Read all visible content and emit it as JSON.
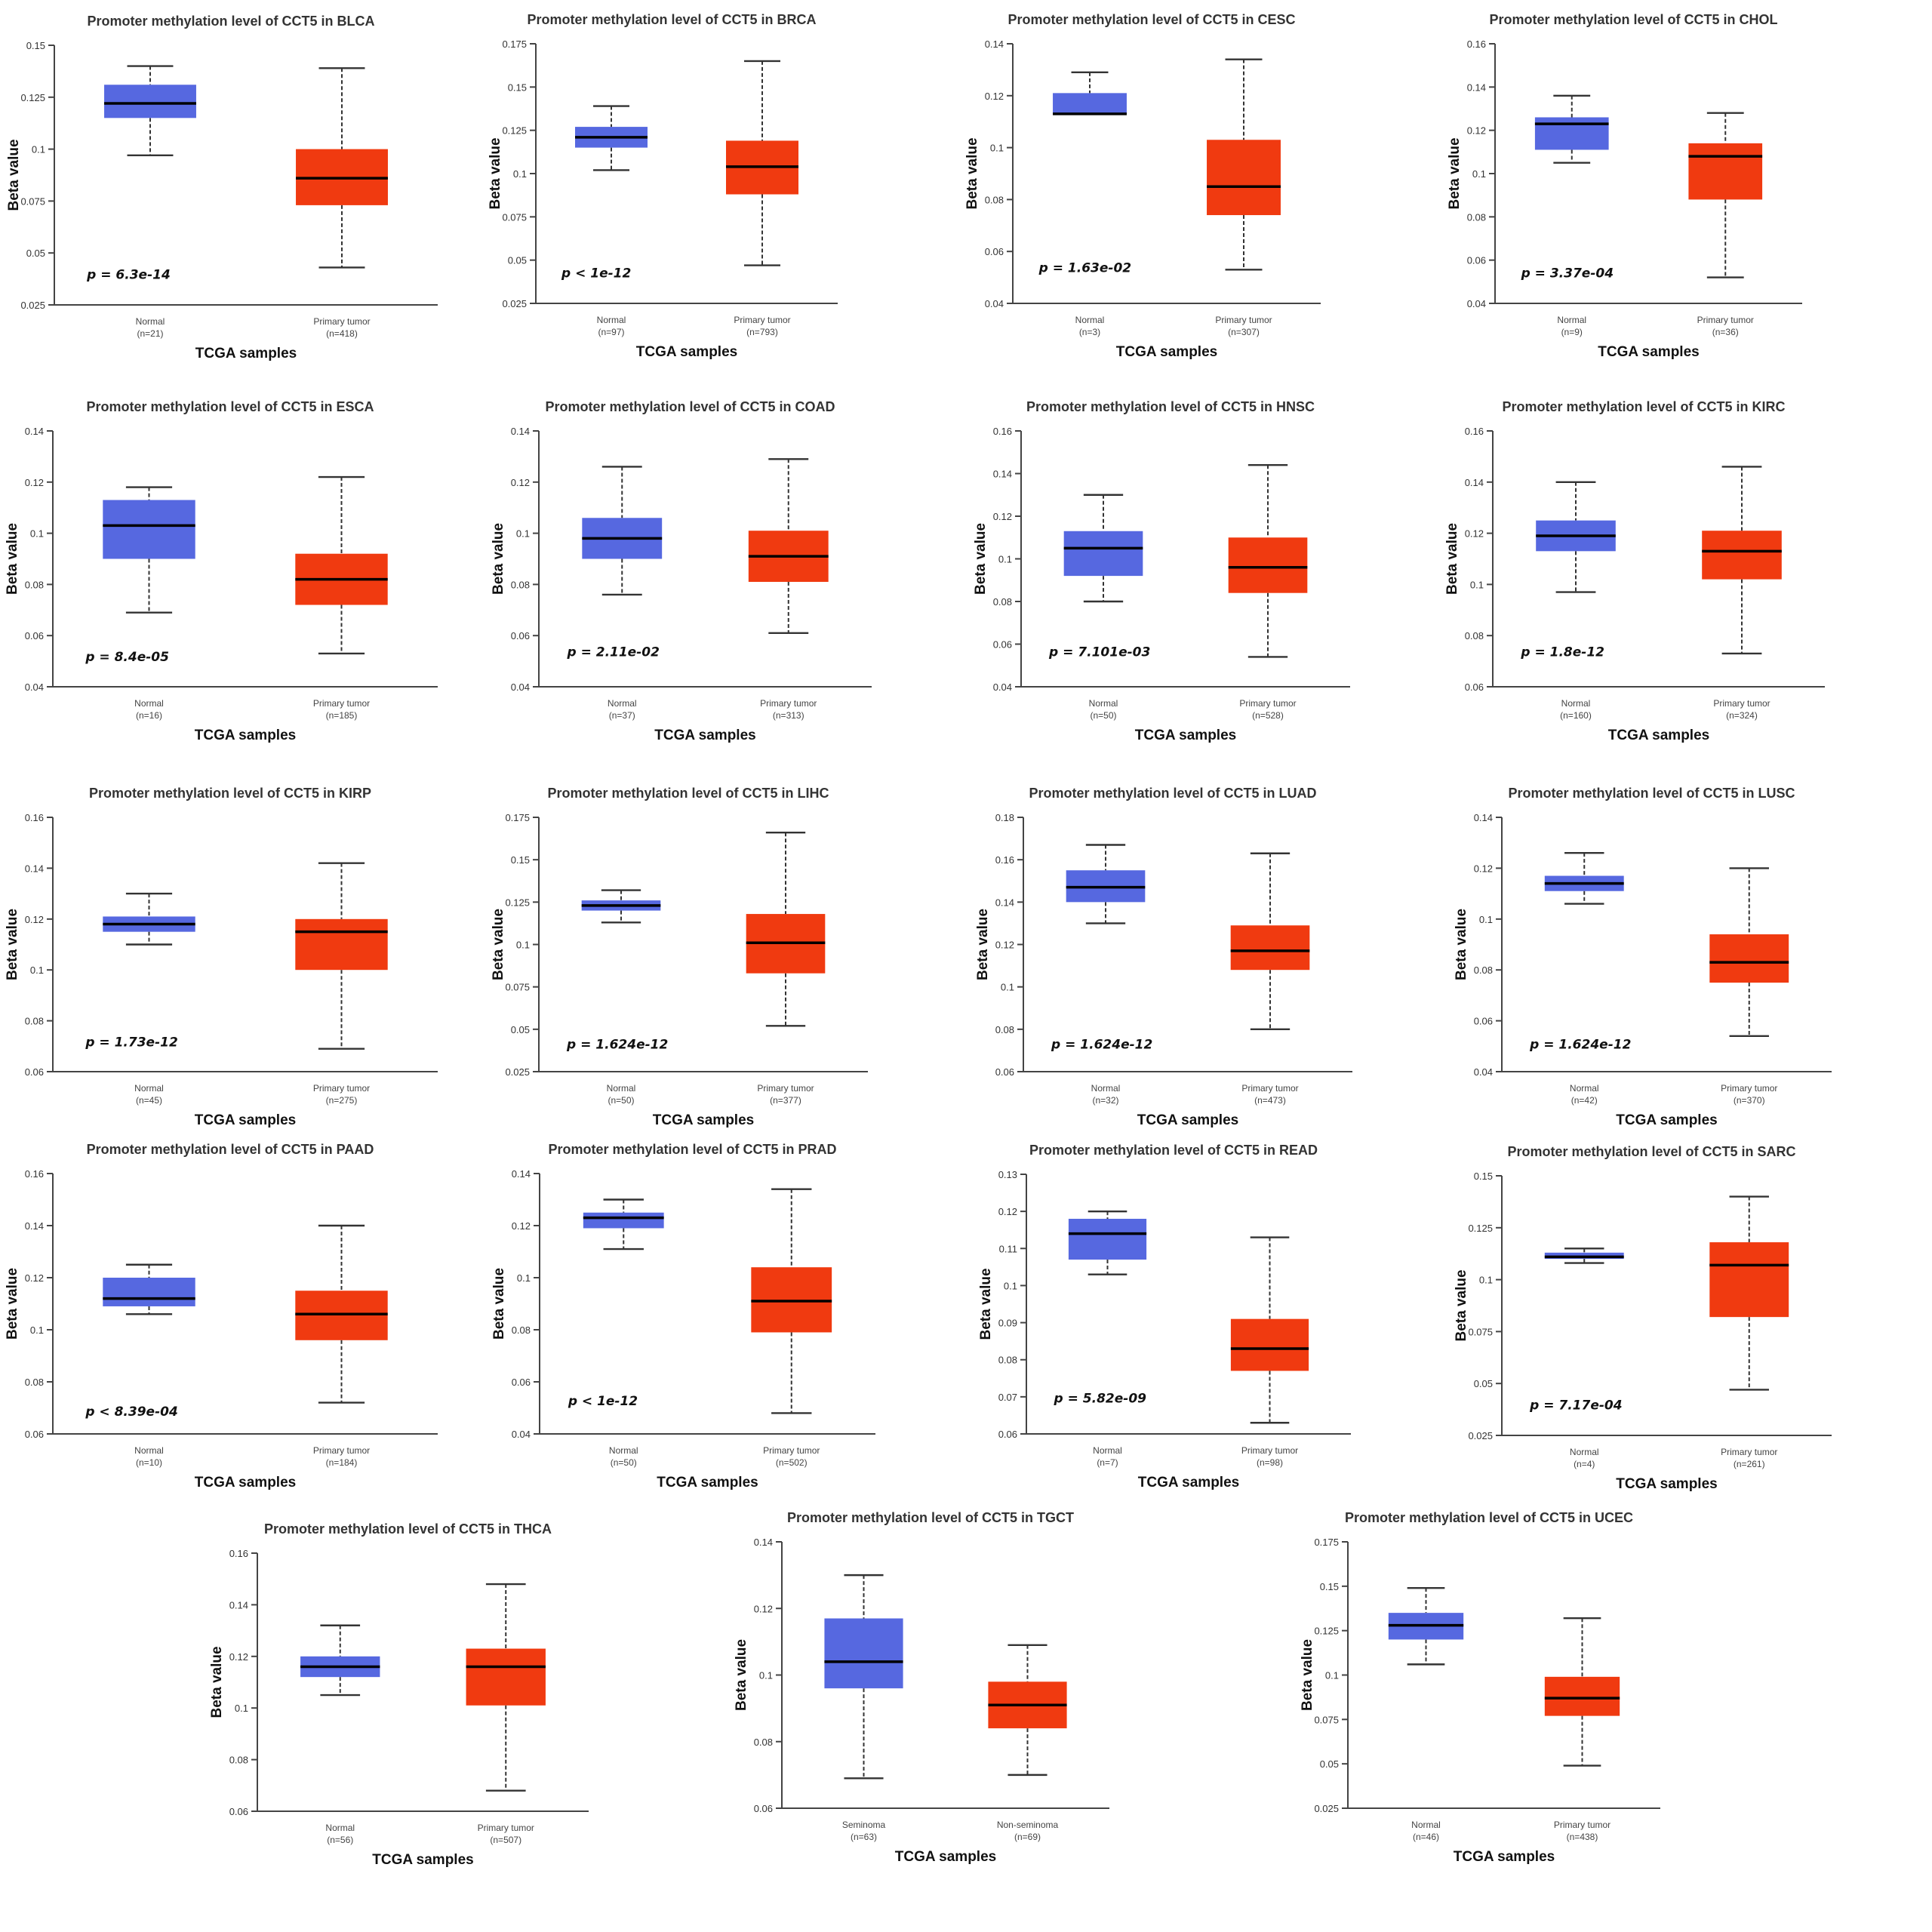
{
  "figure": {
    "gene": "CCT5",
    "colors": {
      "normal": "#5668e0",
      "tumor": "#f03a10",
      "axis": "#444444",
      "text": "#333333"
    }
  },
  "chart_data": [
    {
      "type": "box",
      "title": "Promoter methylation level of CCT5 in BLCA",
      "xlabel": "TCGA samples",
      "ylabel": "Beta value",
      "ylim": [
        0.025,
        0.15
      ],
      "yticks": [
        "0.025",
        "0.05",
        "0.075",
        "0.1",
        "0.125",
        "0.15"
      ],
      "p_value": "p = 6.3e-14",
      "groups": [
        {
          "label": "Normal",
          "n": "(n=21)",
          "min": 0.097,
          "q1": 0.115,
          "median": 0.122,
          "q3": 0.131,
          "max": 0.14
        },
        {
          "label": "Primary tumor",
          "n": "(n=418)",
          "min": 0.043,
          "q1": 0.073,
          "median": 0.086,
          "q3": 0.1,
          "max": 0.139
        }
      ]
    },
    {
      "type": "box",
      "title": "Promoter methylation level of CCT5 in BRCA",
      "xlabel": "TCGA samples",
      "ylabel": "Beta value",
      "ylim": [
        0.025,
        0.175
      ],
      "yticks": [
        "0.025",
        "0.05",
        "0.075",
        "0.1",
        "0.125",
        "0.15",
        "0.175"
      ],
      "p_value": "p < 1e-12",
      "groups": [
        {
          "label": "Normal",
          "n": "(n=97)",
          "min": 0.102,
          "q1": 0.115,
          "median": 0.121,
          "q3": 0.127,
          "max": 0.139
        },
        {
          "label": "Primary tumor",
          "n": "(n=793)",
          "min": 0.047,
          "q1": 0.088,
          "median": 0.104,
          "q3": 0.119,
          "max": 0.165
        }
      ]
    },
    {
      "type": "box",
      "title": "Promoter methylation level of CCT5 in CESC",
      "xlabel": "TCGA samples",
      "ylabel": "Beta value",
      "ylim": [
        0.04,
        0.14
      ],
      "yticks": [
        "0.04",
        "0.06",
        "0.08",
        "0.1",
        "0.12",
        "0.14"
      ],
      "p_value": "p = 1.63e-02",
      "groups": [
        {
          "label": "Normal",
          "n": "(n=3)",
          "min": 0.113,
          "q1": 0.113,
          "median": 0.113,
          "q3": 0.121,
          "max": 0.129
        },
        {
          "label": "Primary tumor",
          "n": "(n=307)",
          "min": 0.053,
          "q1": 0.074,
          "median": 0.085,
          "q3": 0.103,
          "max": 0.134
        }
      ]
    },
    {
      "type": "box",
      "title": "Promoter methylation level of CCT5 in CHOL",
      "xlabel": "TCGA samples",
      "ylabel": "Beta value",
      "ylim": [
        0.04,
        0.16
      ],
      "yticks": [
        "0.04",
        "0.06",
        "0.08",
        "0.1",
        "0.12",
        "0.14",
        "0.16"
      ],
      "p_value": "p = 3.37e-04",
      "groups": [
        {
          "label": "Normal",
          "n": "(n=9)",
          "min": 0.105,
          "q1": 0.111,
          "median": 0.123,
          "q3": 0.126,
          "max": 0.136
        },
        {
          "label": "Primary tumor",
          "n": "(n=36)",
          "min": 0.052,
          "q1": 0.088,
          "median": 0.108,
          "q3": 0.114,
          "max": 0.128
        }
      ]
    },
    {
      "type": "box",
      "title": "Promoter methylation level of CCT5 in ESCA",
      "xlabel": "TCGA samples",
      "ylabel": "Beta value",
      "ylim": [
        0.04,
        0.14
      ],
      "yticks": [
        "0.04",
        "0.06",
        "0.08",
        "0.1",
        "0.12",
        "0.14"
      ],
      "p_value": "p = 8.4e-05",
      "groups": [
        {
          "label": "Normal",
          "n": "(n=16)",
          "min": 0.069,
          "q1": 0.09,
          "median": 0.103,
          "q3": 0.113,
          "max": 0.118
        },
        {
          "label": "Primary tumor",
          "n": "(n=185)",
          "min": 0.053,
          "q1": 0.072,
          "median": 0.082,
          "q3": 0.092,
          "max": 0.122
        }
      ]
    },
    {
      "type": "box",
      "title": "Promoter methylation level of CCT5 in COAD",
      "xlabel": "TCGA samples",
      "ylabel": "Beta value",
      "ylim": [
        0.04,
        0.14
      ],
      "yticks": [
        "0.04",
        "0.06",
        "0.08",
        "0.1",
        "0.12",
        "0.14"
      ],
      "p_value": "p = 2.11e-02",
      "groups": [
        {
          "label": "Normal",
          "n": "(n=37)",
          "min": 0.076,
          "q1": 0.09,
          "median": 0.098,
          "q3": 0.106,
          "max": 0.126
        },
        {
          "label": "Primary tumor",
          "n": "(n=313)",
          "min": 0.061,
          "q1": 0.081,
          "median": 0.091,
          "q3": 0.101,
          "max": 0.129
        }
      ]
    },
    {
      "type": "box",
      "title": "Promoter methylation level of CCT5 in HNSC",
      "xlabel": "TCGA samples",
      "ylabel": "Beta value",
      "ylim": [
        0.04,
        0.16
      ],
      "yticks": [
        "0.04",
        "0.06",
        "0.08",
        "0.1",
        "0.12",
        "0.14",
        "0.16"
      ],
      "p_value": "p = 7.101e-03",
      "groups": [
        {
          "label": "Normal",
          "n": "(n=50)",
          "min": 0.08,
          "q1": 0.092,
          "median": 0.105,
          "q3": 0.113,
          "max": 0.13
        },
        {
          "label": "Primary tumor",
          "n": "(n=528)",
          "min": 0.054,
          "q1": 0.084,
          "median": 0.096,
          "q3": 0.11,
          "max": 0.144
        }
      ]
    },
    {
      "type": "box",
      "title": "Promoter methylation level of CCT5 in KIRC",
      "xlabel": "TCGA samples",
      "ylabel": "Beta value",
      "ylim": [
        0.06,
        0.16
      ],
      "yticks": [
        "0.06",
        "0.08",
        "0.1",
        "0.12",
        "0.14",
        "0.16"
      ],
      "p_value": "p = 1.8e-12",
      "groups": [
        {
          "label": "Normal",
          "n": "(n=160)",
          "min": 0.097,
          "q1": 0.113,
          "median": 0.119,
          "q3": 0.125,
          "max": 0.14
        },
        {
          "label": "Primary tumor",
          "n": "(n=324)",
          "min": 0.073,
          "q1": 0.102,
          "median": 0.113,
          "q3": 0.121,
          "max": 0.146
        }
      ]
    },
    {
      "type": "box",
      "title": "Promoter methylation level of CCT5 in KIRP",
      "xlabel": "TCGA samples",
      "ylabel": "Beta value",
      "ylim": [
        0.06,
        0.16
      ],
      "yticks": [
        "0.06",
        "0.08",
        "0.1",
        "0.12",
        "0.14",
        "0.16"
      ],
      "p_value": "p = 1.73e-12",
      "groups": [
        {
          "label": "Normal",
          "n": "(n=45)",
          "min": 0.11,
          "q1": 0.115,
          "median": 0.118,
          "q3": 0.121,
          "max": 0.13
        },
        {
          "label": "Primary tumor",
          "n": "(n=275)",
          "min": 0.069,
          "q1": 0.1,
          "median": 0.115,
          "q3": 0.12,
          "max": 0.142
        }
      ]
    },
    {
      "type": "box",
      "title": "Promoter methylation level of CCT5 in LIHC",
      "xlabel": "TCGA samples",
      "ylabel": "Beta value",
      "ylim": [
        0.025,
        0.175
      ],
      "yticks": [
        "0.025",
        "0.05",
        "0.075",
        "0.1",
        "0.125",
        "0.15",
        "0.175"
      ],
      "p_value": "p = 1.624e-12",
      "groups": [
        {
          "label": "Normal",
          "n": "(n=50)",
          "min": 0.113,
          "q1": 0.12,
          "median": 0.123,
          "q3": 0.126,
          "max": 0.132
        },
        {
          "label": "Primary tumor",
          "n": "(n=377)",
          "min": 0.052,
          "q1": 0.083,
          "median": 0.101,
          "q3": 0.118,
          "max": 0.166
        }
      ]
    },
    {
      "type": "box",
      "title": "Promoter methylation level of CCT5 in LUAD",
      "xlabel": "TCGA samples",
      "ylabel": "Beta value",
      "ylim": [
        0.06,
        0.18
      ],
      "yticks": [
        "0.06",
        "0.08",
        "0.1",
        "0.12",
        "0.14",
        "0.16",
        "0.18"
      ],
      "p_value": "p = 1.624e-12",
      "groups": [
        {
          "label": "Normal",
          "n": "(n=32)",
          "min": 0.13,
          "q1": 0.14,
          "median": 0.147,
          "q3": 0.155,
          "max": 0.167
        },
        {
          "label": "Primary tumor",
          "n": "(n=473)",
          "min": 0.08,
          "q1": 0.108,
          "median": 0.117,
          "q3": 0.129,
          "max": 0.163
        }
      ]
    },
    {
      "type": "box",
      "title": "Promoter methylation level of CCT5 in LUSC",
      "xlabel": "TCGA samples",
      "ylabel": "Beta value",
      "ylim": [
        0.04,
        0.14
      ],
      "yticks": [
        "0.04",
        "0.06",
        "0.08",
        "0.1",
        "0.12",
        "0.14"
      ],
      "p_value": "p = 1.624e-12",
      "groups": [
        {
          "label": "Normal",
          "n": "(n=42)",
          "min": 0.106,
          "q1": 0.111,
          "median": 0.114,
          "q3": 0.117,
          "max": 0.126
        },
        {
          "label": "Primary tumor",
          "n": "(n=370)",
          "min": 0.054,
          "q1": 0.075,
          "median": 0.083,
          "q3": 0.094,
          "max": 0.12
        }
      ]
    },
    {
      "type": "box",
      "title": "Promoter methylation level of CCT5 in PAAD",
      "xlabel": "TCGA samples",
      "ylabel": "Beta value",
      "ylim": [
        0.06,
        0.16
      ],
      "yticks": [
        "0.06",
        "0.08",
        "0.1",
        "0.12",
        "0.14",
        "0.16"
      ],
      "p_value": "p < 8.39e-04",
      "groups": [
        {
          "label": "Normal",
          "n": "(n=10)",
          "min": 0.106,
          "q1": 0.109,
          "median": 0.112,
          "q3": 0.12,
          "max": 0.125
        },
        {
          "label": "Primary tumor",
          "n": "(n=184)",
          "min": 0.072,
          "q1": 0.096,
          "median": 0.106,
          "q3": 0.115,
          "max": 0.14
        }
      ]
    },
    {
      "type": "box",
      "title": "Promoter methylation level of CCT5 in PRAD",
      "xlabel": "TCGA samples",
      "ylabel": "Beta value",
      "ylim": [
        0.04,
        0.14
      ],
      "yticks": [
        "0.04",
        "0.06",
        "0.08",
        "0.1",
        "0.12",
        "0.14"
      ],
      "p_value": "p < 1e-12",
      "groups": [
        {
          "label": "Normal",
          "n": "(n=50)",
          "min": 0.111,
          "q1": 0.119,
          "median": 0.123,
          "q3": 0.125,
          "max": 0.13
        },
        {
          "label": "Primary tumor",
          "n": "(n=502)",
          "min": 0.048,
          "q1": 0.079,
          "median": 0.091,
          "q3": 0.104,
          "max": 0.134
        }
      ]
    },
    {
      "type": "box",
      "title": "Promoter methylation level of CCT5 in READ",
      "xlabel": "TCGA samples",
      "ylabel": "Beta value",
      "ylim": [
        0.06,
        0.13
      ],
      "yticks": [
        "0.06",
        "0.07",
        "0.08",
        "0.09",
        "0.1",
        "0.11",
        "0.12",
        "0.13"
      ],
      "p_value": "p = 5.82e-09",
      "groups": [
        {
          "label": "Normal",
          "n": "(n=7)",
          "min": 0.103,
          "q1": 0.107,
          "median": 0.114,
          "q3": 0.118,
          "max": 0.12
        },
        {
          "label": "Primary tumor",
          "n": "(n=98)",
          "min": 0.063,
          "q1": 0.077,
          "median": 0.083,
          "q3": 0.091,
          "max": 0.113
        }
      ]
    },
    {
      "type": "box",
      "title": "Promoter methylation level of CCT5 in SARC",
      "xlabel": "TCGA samples",
      "ylabel": "Beta value",
      "ylim": [
        0.025,
        0.15
      ],
      "yticks": [
        "0.025",
        "0.05",
        "0.075",
        "0.1",
        "0.125",
        "0.15"
      ],
      "p_value": "p = 7.17e-04",
      "groups": [
        {
          "label": "Normal",
          "n": "(n=4)",
          "min": 0.108,
          "q1": 0.11,
          "median": 0.111,
          "q3": 0.113,
          "max": 0.115
        },
        {
          "label": "Primary tumor",
          "n": "(n=261)",
          "min": 0.047,
          "q1": 0.082,
          "median": 0.107,
          "q3": 0.118,
          "max": 0.14
        }
      ]
    },
    {
      "type": "box",
      "title": "Promoter methylation level of CCT5 in THCA",
      "xlabel": "TCGA samples",
      "ylabel": "Beta value",
      "ylim": [
        0.06,
        0.16
      ],
      "yticks": [
        "0.06",
        "0.08",
        "0.1",
        "0.12",
        "0.14",
        "0.16"
      ],
      "p_value": "",
      "groups": [
        {
          "label": "Normal",
          "n": "(n=56)",
          "min": 0.105,
          "q1": 0.112,
          "median": 0.116,
          "q3": 0.12,
          "max": 0.132
        },
        {
          "label": "Primary tumor",
          "n": "(n=507)",
          "min": 0.068,
          "q1": 0.101,
          "median": 0.116,
          "q3": 0.123,
          "max": 0.148
        }
      ]
    },
    {
      "type": "box",
      "title": "Promoter methylation level of CCT5 in TGCT",
      "xlabel": "TCGA samples",
      "ylabel": "Beta value",
      "ylim": [
        0.06,
        0.14
      ],
      "yticks": [
        "0.06",
        "0.08",
        "0.1",
        "0.12",
        "0.14"
      ],
      "p_value": "",
      "groups": [
        {
          "label": "Seminoma",
          "n": "(n=63)",
          "min": 0.069,
          "q1": 0.096,
          "median": 0.104,
          "q3": 0.117,
          "max": 0.13
        },
        {
          "label": "Non-seminoma",
          "n": "(n=69)",
          "min": 0.07,
          "q1": 0.084,
          "median": 0.091,
          "q3": 0.098,
          "max": 0.109
        }
      ]
    },
    {
      "type": "box",
      "title": "Promoter methylation level of CCT5 in UCEC",
      "xlabel": "TCGA samples",
      "ylabel": "Beta value",
      "ylim": [
        0.025,
        0.175
      ],
      "yticks": [
        "0.025",
        "0.05",
        "0.075",
        "0.1",
        "0.125",
        "0.15",
        "0.175"
      ],
      "p_value": "",
      "groups": [
        {
          "label": "Normal",
          "n": "(n=46)",
          "min": 0.106,
          "q1": 0.12,
          "median": 0.128,
          "q3": 0.135,
          "max": 0.149
        },
        {
          "label": "Primary tumor",
          "n": "(n=438)",
          "min": 0.049,
          "q1": 0.077,
          "median": 0.087,
          "q3": 0.099,
          "max": 0.132
        }
      ]
    }
  ]
}
